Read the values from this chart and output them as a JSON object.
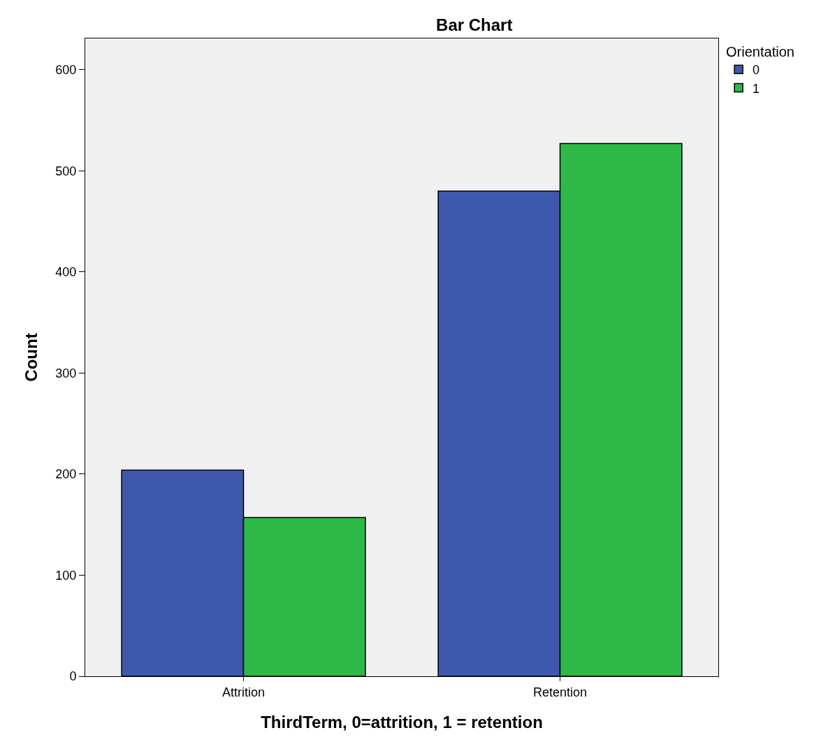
{
  "chart_data": {
    "type": "bar",
    "title": "Bar Chart",
    "xlabel": "ThirdTerm, 0=attrition, 1 = retention",
    "ylabel": "Count",
    "legend_title": "Orientation",
    "categories": [
      "Attrition",
      "Retention"
    ],
    "series": [
      {
        "name": "0",
        "color": "#3e58ac",
        "values": [
          204,
          480
        ]
      },
      {
        "name": "1",
        "color": "#2eb848",
        "values": [
          157,
          527
        ]
      }
    ],
    "ylim": [
      0,
      631
    ],
    "yticks": [
      0,
      100,
      200,
      300,
      400,
      500,
      600
    ],
    "grid": false,
    "legend": "top right"
  }
}
